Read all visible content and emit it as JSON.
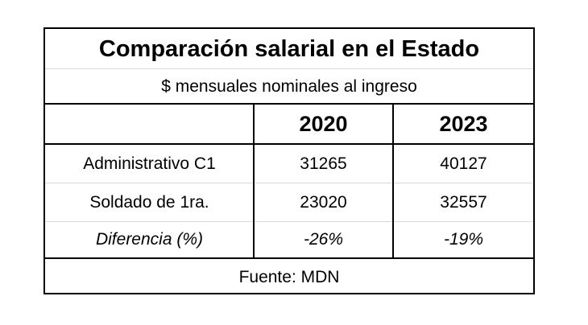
{
  "table": {
    "title": "Comparación salarial en el Estado",
    "subtitle": "$ mensuales nominales al ingreso",
    "columns": [
      "",
      "2020",
      "2023"
    ],
    "rows": [
      {
        "label": "Administrativo C1",
        "v2020": "31265",
        "v2023": "40127"
      },
      {
        "label": "Soldado de 1ra.",
        "v2020": "23020",
        "v2023": "32557"
      },
      {
        "label": "Diferencia (%)",
        "v2020": "-26%",
        "v2023": "-19%"
      }
    ],
    "source": "Fuente: MDN"
  }
}
